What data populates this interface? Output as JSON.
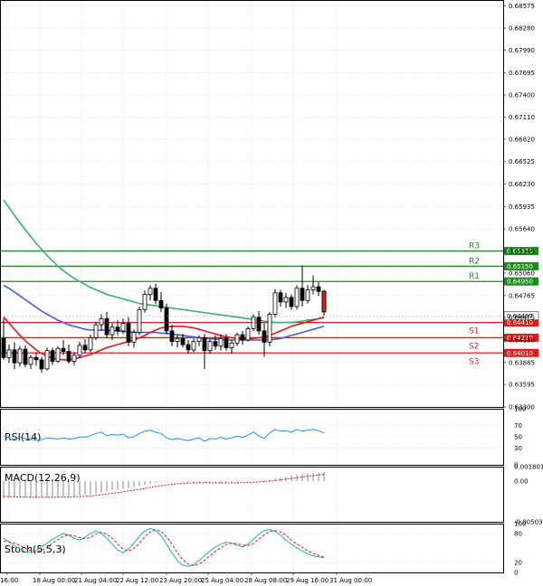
{
  "chart_data": [
    {
      "type": "candlestick",
      "title": "",
      "price_axis_ticks": [
        0.68575,
        0.6828,
        0.6799,
        0.67695,
        0.674,
        0.6711,
        0.6682,
        0.66525,
        0.6623,
        0.65935,
        0.6564,
        0.65345,
        0.6506,
        0.64765,
        0.64475,
        0.6418,
        0.63885,
        0.63595,
        0.633
      ],
      "ylim": [
        0.633,
        0.6865
      ],
      "current_price": 0.64497,
      "time_labels": [
        "16:00",
        "18 Aug 00:00",
        "21 Aug 04:00",
        "22 Aug 12:00",
        "23 Aug 20:00",
        "25 Aug 04:00",
        "28 Aug 08:00",
        "29 Aug 16:00",
        "31 Aug 00:00"
      ],
      "levels": [
        {
          "name": "R3",
          "value": 0.6535,
          "label": "0.65350",
          "color": "#1f8a1f"
        },
        {
          "name": "R2",
          "value": 0.6515,
          "label": "0.65150",
          "color": "#1f8a1f"
        },
        {
          "name": "R1",
          "value": 0.6495,
          "label": "0.64950",
          "color": "#1f8a1f"
        },
        {
          "name": "S1",
          "value": 0.6441,
          "label": "0.64410",
          "color": "#e01b1b"
        },
        {
          "name": "S2",
          "value": 0.6421,
          "label": "0.64210",
          "color": "#e01b1b"
        },
        {
          "name": "S3",
          "value": 0.6401,
          "label": "0.64010",
          "color": "#e01b1b"
        }
      ],
      "candles": [
        [
          0.642,
          0.6446,
          0.6392,
          0.6395
        ],
        [
          0.6395,
          0.6412,
          0.6388,
          0.6405
        ],
        [
          0.6405,
          0.6415,
          0.638,
          0.6388
        ],
        [
          0.6388,
          0.641,
          0.6383,
          0.6406
        ],
        [
          0.6406,
          0.6411,
          0.6382,
          0.6386
        ],
        [
          0.6386,
          0.6398,
          0.638,
          0.6395
        ],
        [
          0.6395,
          0.6402,
          0.6384,
          0.6392
        ],
        [
          0.6392,
          0.6396,
          0.6375,
          0.638
        ],
        [
          0.638,
          0.6408,
          0.6378,
          0.6404
        ],
        [
          0.6404,
          0.6408,
          0.6385,
          0.639
        ],
        [
          0.639,
          0.641,
          0.6388,
          0.6407
        ],
        [
          0.6407,
          0.6418,
          0.6398,
          0.6403
        ],
        [
          0.6403,
          0.6412,
          0.6387,
          0.639
        ],
        [
          0.639,
          0.6402,
          0.6385,
          0.6398
        ],
        [
          0.6398,
          0.6416,
          0.6394,
          0.6411
        ],
        [
          0.6411,
          0.6419,
          0.6401,
          0.6405
        ],
        [
          0.6405,
          0.6425,
          0.6402,
          0.6421
        ],
        [
          0.6421,
          0.6442,
          0.6418,
          0.6438
        ],
        [
          0.6438,
          0.6452,
          0.643,
          0.6446
        ],
        [
          0.6446,
          0.6455,
          0.642,
          0.6425
        ],
        [
          0.6425,
          0.644,
          0.6418,
          0.6435
        ],
        [
          0.6435,
          0.6444,
          0.6424,
          0.643
        ],
        [
          0.643,
          0.6446,
          0.6426,
          0.644
        ],
        [
          0.644,
          0.6448,
          0.641,
          0.6415
        ],
        [
          0.6415,
          0.6432,
          0.6408,
          0.6428
        ],
        [
          0.6428,
          0.6462,
          0.6424,
          0.6458
        ],
        [
          0.6458,
          0.6483,
          0.6454,
          0.6478
        ],
        [
          0.6478,
          0.649,
          0.647,
          0.6486
        ],
        [
          0.6486,
          0.6492,
          0.6465,
          0.647
        ],
        [
          0.647,
          0.6481,
          0.6455,
          0.646
        ],
        [
          0.646,
          0.6466,
          0.6425,
          0.643
        ],
        [
          0.643,
          0.6438,
          0.641,
          0.6416
        ],
        [
          0.6416,
          0.6425,
          0.6408,
          0.642
        ],
        [
          0.642,
          0.6426,
          0.6408,
          0.6412
        ],
        [
          0.6412,
          0.6418,
          0.64,
          0.6405
        ],
        [
          0.6405,
          0.642,
          0.6402,
          0.6416
        ],
        [
          0.6416,
          0.6424,
          0.641,
          0.6421
        ],
        [
          0.6421,
          0.6426,
          0.638,
          0.6404
        ],
        [
          0.6404,
          0.642,
          0.64,
          0.6416
        ],
        [
          0.6416,
          0.6424,
          0.6405,
          0.641
        ],
        [
          0.641,
          0.6425,
          0.6404,
          0.642
        ],
        [
          0.642,
          0.6426,
          0.6404,
          0.6408
        ],
        [
          0.6408,
          0.6418,
          0.64,
          0.6414
        ],
        [
          0.6414,
          0.6428,
          0.641,
          0.6425
        ],
        [
          0.6425,
          0.643,
          0.6412,
          0.6418
        ],
        [
          0.6418,
          0.6436,
          0.6416,
          0.6433
        ],
        [
          0.6433,
          0.6452,
          0.643,
          0.6448
        ],
        [
          0.6448,
          0.6456,
          0.6425,
          0.643
        ],
        [
          0.643,
          0.644,
          0.6396,
          0.6415
        ],
        [
          0.6415,
          0.6455,
          0.641,
          0.6452
        ],
        [
          0.6452,
          0.6485,
          0.6448,
          0.648
        ],
        [
          0.648,
          0.6484,
          0.6462,
          0.6468
        ],
        [
          0.6468,
          0.648,
          0.646,
          0.6474
        ],
        [
          0.6474,
          0.6478,
          0.6458,
          0.6462
        ],
        [
          0.6462,
          0.649,
          0.6458,
          0.6486
        ],
        [
          0.6486,
          0.6516,
          0.6462,
          0.647
        ],
        [
          0.647,
          0.649,
          0.6466,
          0.6484
        ],
        [
          0.6484,
          0.6503,
          0.6478,
          0.6488
        ],
        [
          0.6488,
          0.6494,
          0.6476,
          0.6482
        ],
        [
          0.6482,
          0.6484,
          0.645,
          0.6455
        ]
      ],
      "ma_200_green": [
        0.6602,
        0.6592,
        0.6582,
        0.6572,
        0.6563,
        0.6554,
        0.6545,
        0.6537,
        0.6529,
        0.6522,
        0.6515,
        0.6509,
        0.6504,
        0.6499,
        0.6495,
        0.6491,
        0.6487,
        0.6484,
        0.6481,
        0.6478,
        0.6476,
        0.6474,
        0.6472,
        0.647,
        0.6468,
        0.6466,
        0.6465,
        0.6464,
        0.6463,
        0.6462,
        0.6461,
        0.646,
        0.6459,
        0.6458,
        0.6457,
        0.6456,
        0.6455,
        0.6454,
        0.6453,
        0.6452,
        0.6451,
        0.645,
        0.6449,
        0.6448,
        0.6447,
        0.6446,
        0.6445,
        0.6444,
        0.6443,
        0.6442,
        0.6441,
        0.6441,
        0.6441,
        0.6441,
        0.6442,
        0.6443,
        0.6444,
        0.6445,
        0.6446,
        0.6447
      ],
      "ma_100_blue": [
        0.649,
        0.6486,
        0.6481,
        0.6476,
        0.6471,
        0.6466,
        0.6461,
        0.6456,
        0.6452,
        0.6448,
        0.6444,
        0.6441,
        0.6438,
        0.6436,
        0.6434,
        0.6432,
        0.6431,
        0.6431,
        0.6431,
        0.6431,
        0.643,
        0.643,
        0.6429,
        0.6429,
        0.6428,
        0.6428,
        0.6428,
        0.6428,
        0.6428,
        0.6427,
        0.6427,
        0.6426,
        0.6425,
        0.6424,
        0.6423,
        0.6422,
        0.6421,
        0.642,
        0.642,
        0.6419,
        0.6419,
        0.6418,
        0.6418,
        0.6418,
        0.6418,
        0.6418,
        0.6418,
        0.6418,
        0.6418,
        0.6418,
        0.6419,
        0.642,
        0.6422,
        0.6424,
        0.6426,
        0.6428,
        0.643,
        0.6432,
        0.6434,
        0.6436
      ],
      "ma_50_red": [
        0.6448,
        0.644,
        0.6432,
        0.6424,
        0.6417,
        0.6411,
        0.6405,
        0.64,
        0.6397,
        0.6394,
        0.6393,
        0.6392,
        0.6392,
        0.6393,
        0.6395,
        0.6397,
        0.6399,
        0.6402,
        0.6405,
        0.6408,
        0.641,
        0.6412,
        0.6414,
        0.6416,
        0.6418,
        0.6421,
        0.6424,
        0.6428,
        0.6431,
        0.6434,
        0.6435,
        0.6436,
        0.6436,
        0.6436,
        0.6435,
        0.6434,
        0.6432,
        0.643,
        0.6428,
        0.6426,
        0.6424,
        0.6422,
        0.6421,
        0.642,
        0.6419,
        0.6419,
        0.642,
        0.6421,
        0.6422,
        0.6424,
        0.6427,
        0.643,
        0.6433,
        0.6436,
        0.6438,
        0.644,
        0.6442,
        0.6444,
        0.6446,
        0.6448
      ]
    },
    {
      "type": "line",
      "title": "RSI(14)",
      "ylim": [
        0,
        100
      ],
      "ticks": [
        100,
        70,
        50,
        30,
        0
      ],
      "values": [
        52,
        48,
        45,
        50,
        47,
        46,
        44,
        45,
        48,
        47,
        46,
        48,
        46,
        47,
        50,
        49,
        52,
        56,
        58,
        52,
        54,
        53,
        55,
        48,
        50,
        56,
        60,
        62,
        58,
        56,
        48,
        45,
        47,
        45,
        43,
        46,
        48,
        42,
        47,
        46,
        49,
        46,
        48,
        51,
        49,
        53,
        58,
        52,
        47,
        57,
        63,
        60,
        61,
        58,
        63,
        60,
        62,
        63,
        61,
        57
      ]
    },
    {
      "type": "histogram",
      "title": "MACD(12,26,9)",
      "ylim": [
        -0.005035,
        0.001801
      ],
      "ticks": [
        0.001801,
        0.0,
        -0.005035
      ],
      "tick_labels": [
        "0.001801",
        "0.00",
        "-0.005035"
      ],
      "values": [
        -0.0021,
        -0.00206,
        -0.00204,
        -0.00202,
        -0.00202,
        -0.00201,
        -0.002,
        -0.00201,
        -0.002,
        -0.00198,
        -0.00196,
        -0.00193,
        -0.0019,
        -0.00186,
        -0.0018,
        -0.00173,
        -0.00162,
        -0.0015,
        -0.00136,
        -0.00124,
        -0.00112,
        -0.001,
        -0.0009,
        -0.0008,
        -0.0007,
        -0.0006,
        -0.00045,
        -0.0003,
        -0.0002,
        -0.00012,
        -8e-05,
        -6e-05,
        -8e-05,
        -0.0001,
        -0.00012,
        -0.00015,
        -0.00018,
        -0.0002,
        -0.00022,
        -0.00024,
        -0.00024,
        -0.00022,
        -0.0002,
        -0.00016,
        -0.00012,
        -8e-05,
        -2e-05,
        5e-05,
        0.00012,
        0.0002,
        0.00035,
        0.00048,
        0.0006,
        0.0007,
        0.0008,
        0.00088,
        0.00095,
        0.00102,
        0.00108,
        0.0011
      ],
      "signal": [
        -0.0019,
        -0.00192,
        -0.00195,
        -0.00197,
        -0.00199,
        -0.002,
        -0.002,
        -0.002,
        -0.002,
        -0.002,
        -0.00199,
        -0.00198,
        -0.00196,
        -0.00194,
        -0.00191,
        -0.00187,
        -0.00182,
        -0.00176,
        -0.00168,
        -0.0016,
        -0.00151,
        -0.00141,
        -0.00131,
        -0.00121,
        -0.00111,
        -0.00101,
        -0.0009,
        -0.00078,
        -0.00067,
        -0.00056,
        -0.00046,
        -0.00038,
        -0.00032,
        -0.00027,
        -0.00024,
        -0.00022,
        -0.00021,
        -0.00021,
        -0.00021,
        -0.00022,
        -0.00022,
        -0.00022,
        -0.00022,
        -0.00021,
        -0.00019,
        -0.00017,
        -0.00014,
        -0.0001,
        -5e-05,
        1e-05,
        8e-05,
        0.00016,
        0.00025,
        0.00034,
        0.00043,
        0.00052,
        0.00061,
        0.00069,
        0.00077,
        0.00084
      ]
    },
    {
      "type": "line",
      "title": "Stoch(5,5,3)",
      "ylim": [
        0,
        100
      ],
      "ticks": [
        100,
        80,
        20,
        0
      ],
      "k_values": [
        70,
        62,
        55,
        48,
        42,
        40,
        45,
        52,
        60,
        68,
        74,
        80,
        76,
        70,
        66,
        72,
        80,
        85,
        80,
        70,
        58,
        46,
        40,
        48,
        60,
        74,
        85,
        90,
        86,
        75,
        58,
        40,
        24,
        15,
        12,
        16,
        24,
        34,
        44,
        52,
        58,
        62,
        60,
        56,
        52,
        58,
        68,
        78,
        86,
        88,
        84,
        76,
        66,
        58,
        50,
        44,
        38,
        34,
        32,
        30
      ],
      "d_values": [
        64,
        63,
        60,
        55,
        49,
        44,
        42,
        45,
        52,
        60,
        67,
        74,
        77,
        75,
        71,
        69,
        72,
        79,
        82,
        78,
        70,
        58,
        48,
        44,
        49,
        60,
        73,
        83,
        87,
        84,
        73,
        58,
        40,
        26,
        17,
        14,
        17,
        25,
        34,
        43,
        51,
        57,
        60,
        59,
        56,
        55,
        59,
        68,
        77,
        84,
        86,
        83,
        76,
        66,
        58,
        51,
        44,
        39,
        35,
        32
      ]
    }
  ]
}
